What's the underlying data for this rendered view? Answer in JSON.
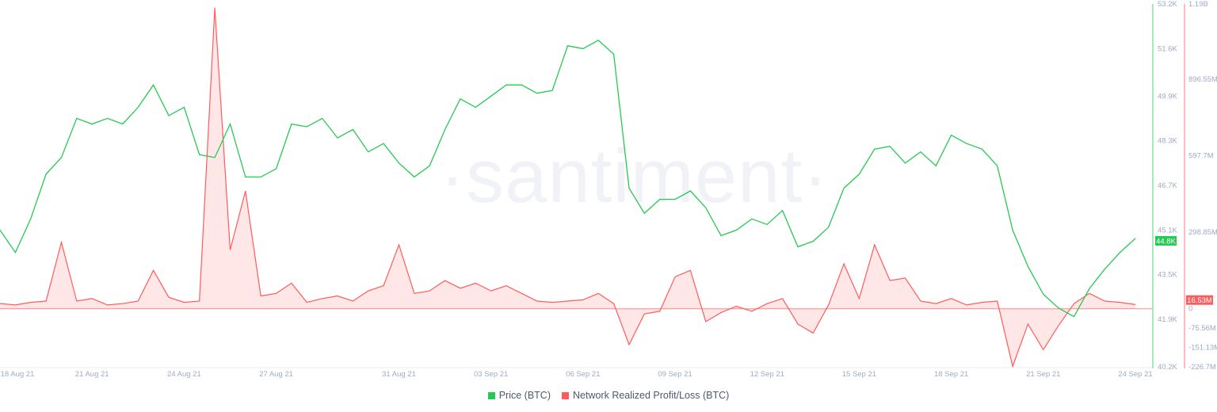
{
  "watermark": "·santiment·",
  "chart_data": {
    "type": "line",
    "title": "",
    "x_start": "2021-08-18T00:00",
    "x_end": "2021-09-24T00:00",
    "x_step_hours": 12,
    "x_tick_labels": [
      "18 Aug 21",
      "21 Aug 21",
      "24 Aug 21",
      "27 Aug 21",
      "31 Aug 21",
      "03 Sep 21",
      "06 Sep 21",
      "09 Sep 21",
      "12 Sep 21",
      "15 Sep 21",
      "18 Sep 21",
      "21 Sep 21",
      "24 Sep 21"
    ],
    "x_tick_dates": [
      "2021-08-18",
      "2021-08-21",
      "2021-08-24",
      "2021-08-27",
      "2021-08-31",
      "2021-09-03",
      "2021-09-06",
      "2021-09-09",
      "2021-09-12",
      "2021-09-15",
      "2021-09-18",
      "2021-09-21",
      "2021-09-24"
    ],
    "grid": false,
    "legend_placement": "bottom-center",
    "series": [
      {
        "name": "Price (BTC)",
        "color": "#26c953",
        "axis": "right-inner",
        "unit": "USD (K)",
        "ylim": [
          40.2,
          53.2
        ],
        "y_tick_labels": [
          "53.2K",
          "51.6K",
          "49.9K",
          "48.3K",
          "46.7K",
          "45.1K",
          "43.5K",
          "41.9K",
          "40.2K"
        ],
        "y_tick_values": [
          53.2,
          51.6,
          49.9,
          48.3,
          46.7,
          45.1,
          43.5,
          41.9,
          40.2
        ],
        "last_value_label": "44.8K",
        "values": [
          45.1,
          44.3,
          45.5,
          47.1,
          47.7,
          49.1,
          48.9,
          49.1,
          48.9,
          49.5,
          50.3,
          49.2,
          49.5,
          47.8,
          47.7,
          48.9,
          47.0,
          47.0,
          47.3,
          48.9,
          48.8,
          49.1,
          48.4,
          48.7,
          47.9,
          48.2,
          47.5,
          47.0,
          47.4,
          48.7,
          49.8,
          49.5,
          49.9,
          50.3,
          50.3,
          50.0,
          50.1,
          51.7,
          51.6,
          51.9,
          51.4,
          46.6,
          45.7,
          46.2,
          46.2,
          46.5,
          45.9,
          44.9,
          45.1,
          45.5,
          45.3,
          45.8,
          44.5,
          44.7,
          45.2,
          46.6,
          47.1,
          48.0,
          48.1,
          47.5,
          47.9,
          47.4,
          48.5,
          48.2,
          48.0,
          47.4,
          45.1,
          43.8,
          42.8,
          42.3,
          42.0,
          43.0,
          43.7,
          44.3,
          44.8
        ]
      },
      {
        "name": "Network Realized Profit/Loss (BTC)",
        "color": "#ff5b5b",
        "axis": "right-outer",
        "unit": "M",
        "ylim": [
          -226.7,
          1190
        ],
        "y_tick_labels": [
          "1.19B",
          "896.55M",
          "597.7M",
          "298.85M",
          "0",
          "-75.56M",
          "-151.13M",
          "-226.7M"
        ],
        "y_tick_values": [
          1190,
          896.55,
          597.7,
          298.85,
          0,
          -75.56,
          -151.13,
          -226.7
        ],
        "last_value_label": "16.53M",
        "values": [
          20,
          15,
          25,
          30,
          260,
          30,
          40,
          15,
          20,
          30,
          150,
          45,
          25,
          30,
          1175,
          230,
          460,
          50,
          60,
          100,
          25,
          40,
          50,
          30,
          70,
          90,
          250,
          60,
          70,
          110,
          80,
          100,
          70,
          90,
          60,
          30,
          25,
          30,
          35,
          60,
          20,
          -140,
          -20,
          -10,
          125,
          150,
          -50,
          -15,
          10,
          -10,
          20,
          40,
          -60,
          -95,
          15,
          175,
          40,
          250,
          110,
          120,
          30,
          20,
          40,
          15,
          25,
          30,
          -225,
          -60,
          -160,
          -65,
          20,
          60,
          30,
          25,
          16.53
        ]
      }
    ]
  }
}
